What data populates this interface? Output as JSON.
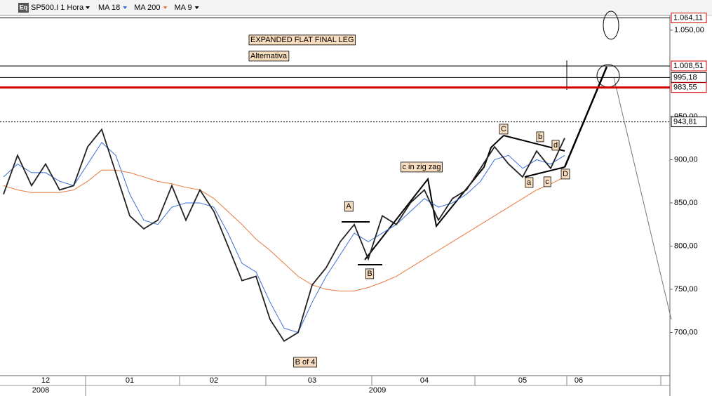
{
  "toolbar": {
    "symbol": "SP500.I 1 Hora",
    "icon": "Eq",
    "indicators": [
      {
        "name": "MA 18",
        "color": "#3a6fd8"
      },
      {
        "name": "MA 200",
        "color": "#e87a3c"
      },
      {
        "name": "MA 9",
        "color": "#000000"
      }
    ]
  },
  "chart_data": {
    "type": "line",
    "categories": [
      null,
      null,
      null,
      "12",
      null,
      null,
      null,
      null,
      null,
      "01",
      null,
      null,
      null,
      null,
      null,
      "02",
      null,
      null,
      null,
      null,
      null,
      null,
      "03",
      null,
      null,
      null,
      null,
      null,
      null,
      null,
      "04",
      null,
      null,
      null,
      null,
      null,
      null,
      "05",
      null,
      null,
      null,
      "06",
      null,
      null,
      null,
      null,
      null,
      null
    ],
    "series": [
      {
        "name": "SP500.I",
        "color": "#222222",
        "values": [
          860,
          905,
          870,
          895,
          865,
          870,
          915,
          935,
          885,
          835,
          820,
          830,
          870,
          830,
          865,
          840,
          800,
          760,
          765,
          715,
          690,
          700,
          755,
          775,
          805,
          825,
          785,
          835,
          825,
          850,
          865,
          830,
          855,
          865,
          890,
          915,
          895,
          880,
          910,
          890,
          925,
          null,
          null,
          null,
          null,
          null,
          null,
          null
        ]
      },
      {
        "name": "MA 18",
        "color": "#3a6fd8",
        "values": [
          880,
          895,
          885,
          885,
          875,
          870,
          895,
          920,
          905,
          860,
          830,
          825,
          845,
          850,
          850,
          845,
          815,
          780,
          770,
          735,
          705,
          700,
          735,
          765,
          790,
          815,
          805,
          815,
          825,
          840,
          855,
          845,
          850,
          860,
          875,
          900,
          905,
          890,
          900,
          895,
          905,
          null,
          null,
          null,
          null,
          null,
          null,
          null
        ]
      },
      {
        "name": "MA 200",
        "color": "#e87a3c",
        "values": [
          870,
          865,
          862,
          862,
          862,
          865,
          875,
          888,
          888,
          885,
          880,
          875,
          872,
          868,
          865,
          855,
          840,
          825,
          808,
          795,
          780,
          765,
          755,
          750,
          748,
          748,
          752,
          758,
          765,
          775,
          785,
          795,
          805,
          815,
          825,
          835,
          845,
          855,
          865,
          872,
          880,
          null,
          null,
          null,
          null,
          null,
          null,
          null
        ]
      }
    ],
    "ylim": [
      650,
      1067
    ],
    "yticks": [
      {
        "value": 1050,
        "label": "1.050,00"
      },
      {
        "value": 950,
        "label": "950,00"
      },
      {
        "value": 900,
        "label": "900,00"
      },
      {
        "value": 850,
        "label": "850,00"
      },
      {
        "value": 800,
        "label": "800,00"
      },
      {
        "value": 750,
        "label": "750,00"
      },
      {
        "value": 700,
        "label": "700,00"
      }
    ],
    "years": [
      "2008",
      "2009"
    ],
    "levels": [
      {
        "value": 1064.11,
        "label": "1.064,11",
        "color": "#d00000",
        "line": "thin"
      },
      {
        "value": 1008.51,
        "label": "1.008,51",
        "color": "#d00000",
        "line": "thin"
      },
      {
        "value": 995.18,
        "label": "995,18",
        "color": "#000000",
        "line": "thin"
      },
      {
        "value": 983.55,
        "label": "983,55",
        "color": "#d00000",
        "line": "thick"
      },
      {
        "value": 943.81,
        "label": "943,81",
        "color": "#000000",
        "line": "dotted"
      }
    ],
    "annotations": [
      "EXPANDED FLAT FINAL LEG",
      "Alternativa",
      "A",
      "B",
      "c in zig zag",
      "C",
      "b",
      "d",
      "a",
      "c",
      "D",
      "B of 4"
    ]
  }
}
